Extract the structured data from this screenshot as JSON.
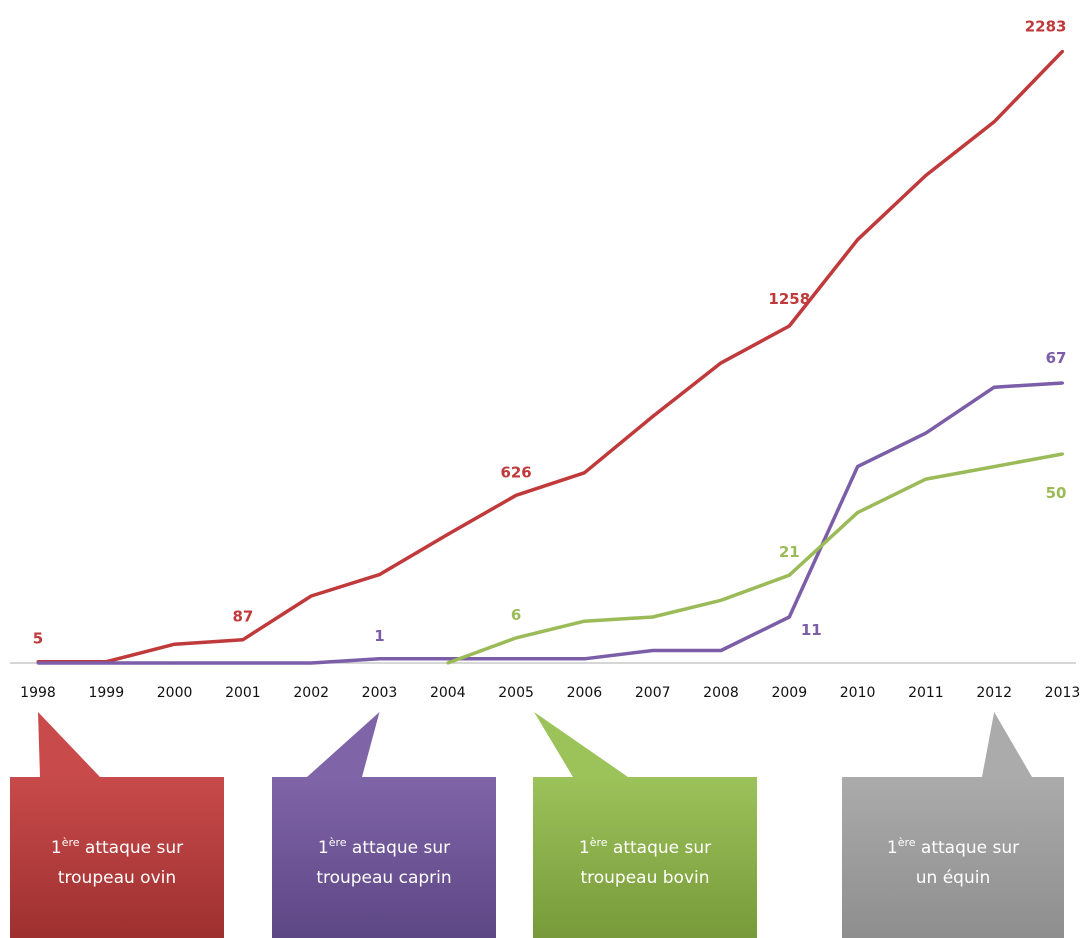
{
  "chart_data": {
    "type": "line",
    "x": [
      "1998",
      "1999",
      "2000",
      "2001",
      "2002",
      "2003",
      "2004",
      "2005",
      "2006",
      "2007",
      "2008",
      "2009",
      "2010",
      "2011",
      "2012",
      "2013"
    ],
    "ylim": [
      0,
      2400
    ],
    "grid": false,
    "legend": "none",
    "series": [
      {
        "color": "#c0393b",
        "values": [
          5,
          5,
          70,
          87,
          250,
          330,
          480,
          626,
          710,
          920,
          1120,
          1258,
          1580,
          1820,
          2020,
          2283
        ],
        "labels": [
          {
            "index": 0,
            "text": "5"
          },
          {
            "index": 3,
            "text": "87"
          },
          {
            "index": 7,
            "text": "626"
          },
          {
            "index": 11,
            "text": "1258"
          },
          {
            "index": 15,
            "text": "2283"
          }
        ]
      },
      {
        "color": "#7b5ea7",
        "values": [
          0,
          0,
          0,
          0,
          0,
          1,
          1,
          1,
          1,
          3,
          3,
          11,
          47,
          55,
          66,
          67
        ],
        "labels": [
          {
            "index": 5,
            "text": "1"
          },
          {
            "index": 11,
            "text": "11"
          },
          {
            "index": 15,
            "text": "67"
          }
        ]
      },
      {
        "color": "#9bbb59",
        "values": [
          null,
          null,
          null,
          null,
          null,
          null,
          0,
          6,
          10,
          11,
          15,
          21,
          36,
          44,
          47,
          50
        ],
        "labels": [
          {
            "index": 7,
            "text": "6"
          },
          {
            "index": 11,
            "text": "21"
          },
          {
            "index": 15,
            "text": "50"
          }
        ]
      }
    ]
  },
  "callouts": [
    {
      "sup": "ère",
      "line1_pre": "1",
      "line1_post": " attaque sur",
      "line2": "troupeau ovin",
      "year": "1998",
      "color_top": "#c84a4a",
      "color_bottom": "#9e3030"
    },
    {
      "sup": "ère",
      "line1_pre": "1",
      "line1_post": " attaque sur",
      "line2": "troupeau caprin",
      "year": "2003",
      "color_top": "#7f65a8",
      "color_bottom": "#5e4785"
    },
    {
      "sup": "ère",
      "line1_pre": "1",
      "line1_post": " attaque sur",
      "line2": "troupeau bovin",
      "year": "2005",
      "color_top": "#9cc25a",
      "color_bottom": "#789a3a"
    },
    {
      "sup": "ère",
      "line1_pre": "1",
      "line1_post": " attaque sur",
      "line2": "un équin",
      "year": "2012",
      "color_top": "#ababab",
      "color_bottom": "#8e8e8e"
    }
  ]
}
